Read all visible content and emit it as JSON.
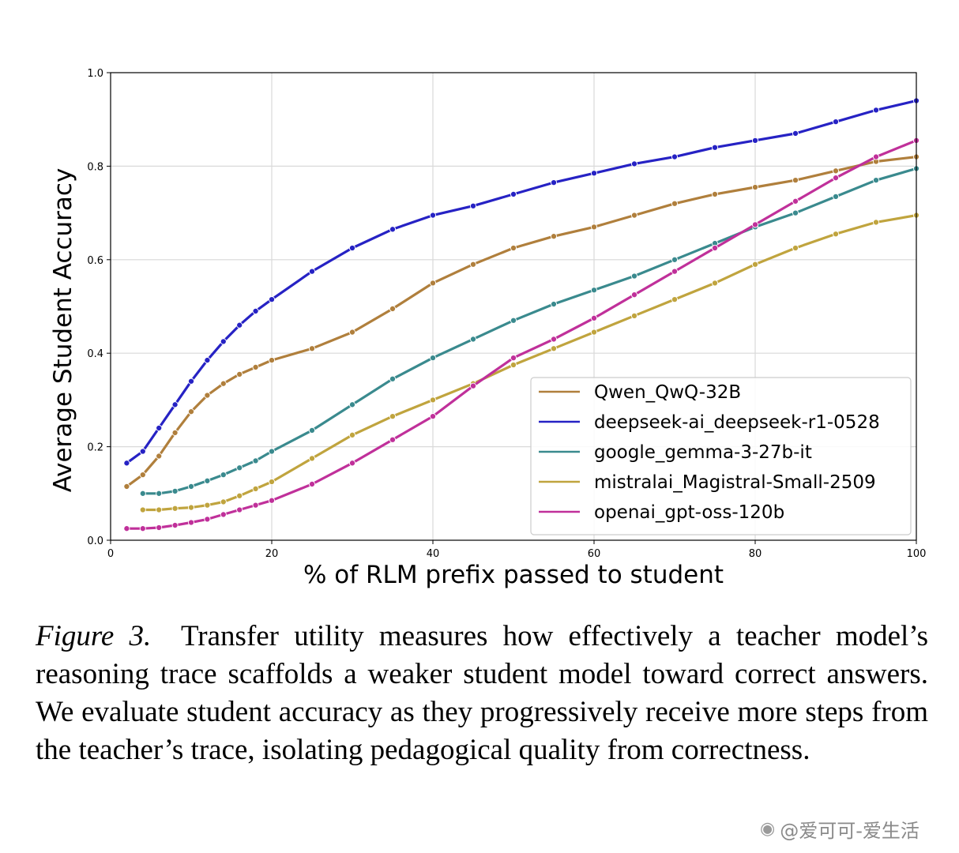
{
  "chart_data": {
    "type": "line",
    "title": "",
    "xlabel": "% of RLM prefix passed to student",
    "ylabel": "Average Student Accuracy",
    "xlim": [
      0,
      100
    ],
    "ylim": [
      0.0,
      1.0
    ],
    "xticks": [
      0,
      20,
      40,
      60,
      80,
      100
    ],
    "yticks": [
      0.0,
      0.2,
      0.4,
      0.6,
      0.8,
      1.0
    ],
    "xtick_labels": [
      "0",
      "20",
      "40",
      "60",
      "80",
      "100"
    ],
    "ytick_labels": [
      "0.0",
      "0.2",
      "0.4",
      "0.6",
      "0.8",
      "1.0"
    ],
    "grid": true,
    "legend_position": "lower-right",
    "series": [
      {
        "name": "Qwen_QwQ-32B",
        "color": "#b07f3c",
        "x": [
          2,
          4,
          6,
          8,
          10,
          12,
          14,
          16,
          18,
          20,
          25,
          30,
          35,
          40,
          45,
          50,
          55,
          60,
          65,
          70,
          75,
          80,
          85,
          90,
          95,
          100
        ],
        "y": [
          0.115,
          0.14,
          0.18,
          0.23,
          0.275,
          0.31,
          0.335,
          0.355,
          0.37,
          0.385,
          0.41,
          0.445,
          0.495,
          0.55,
          0.59,
          0.625,
          0.65,
          0.67,
          0.695,
          0.72,
          0.74,
          0.755,
          0.77,
          0.79,
          0.81,
          0.82
        ]
      },
      {
        "name": "deepseek-ai_deepseek-r1-0528",
        "color": "#2622c4",
        "x": [
          2,
          4,
          6,
          8,
          10,
          12,
          14,
          16,
          18,
          20,
          25,
          30,
          35,
          40,
          45,
          50,
          55,
          60,
          65,
          70,
          75,
          80,
          85,
          90,
          95,
          100
        ],
        "y": [
          0.165,
          0.19,
          0.24,
          0.29,
          0.34,
          0.385,
          0.425,
          0.46,
          0.49,
          0.515,
          0.575,
          0.625,
          0.665,
          0.695,
          0.715,
          0.74,
          0.765,
          0.785,
          0.805,
          0.82,
          0.84,
          0.855,
          0.87,
          0.895,
          0.92,
          0.94
        ]
      },
      {
        "name": "google_gemma-3-27b-it",
        "color": "#3a8a8e",
        "x": [
          4,
          6,
          8,
          10,
          12,
          14,
          16,
          18,
          20,
          25,
          30,
          35,
          40,
          45,
          50,
          55,
          60,
          65,
          70,
          75,
          80,
          85,
          90,
          95,
          100
        ],
        "y": [
          0.1,
          0.1,
          0.105,
          0.115,
          0.127,
          0.14,
          0.155,
          0.17,
          0.19,
          0.235,
          0.29,
          0.345,
          0.39,
          0.43,
          0.47,
          0.505,
          0.535,
          0.565,
          0.6,
          0.635,
          0.67,
          0.7,
          0.735,
          0.77,
          0.795
        ]
      },
      {
        "name": "mistralai_Magistral-Small-2509",
        "color": "#c0a43e",
        "x": [
          4,
          6,
          8,
          10,
          12,
          14,
          16,
          18,
          20,
          25,
          30,
          35,
          40,
          45,
          50,
          55,
          60,
          65,
          70,
          75,
          80,
          85,
          90,
          95,
          100
        ],
        "y": [
          0.065,
          0.065,
          0.068,
          0.07,
          0.075,
          0.082,
          0.095,
          0.11,
          0.125,
          0.175,
          0.225,
          0.265,
          0.3,
          0.335,
          0.375,
          0.41,
          0.445,
          0.48,
          0.515,
          0.55,
          0.59,
          0.625,
          0.655,
          0.68,
          0.695
        ]
      },
      {
        "name": "openai_gpt-oss-120b",
        "color": "#c0309a",
        "x": [
          2,
          4,
          6,
          8,
          10,
          12,
          14,
          16,
          18,
          20,
          25,
          30,
          35,
          40,
          45,
          50,
          55,
          60,
          65,
          70,
          75,
          80,
          85,
          90,
          95,
          100
        ],
        "y": [
          0.025,
          0.025,
          0.027,
          0.032,
          0.038,
          0.045,
          0.055,
          0.065,
          0.075,
          0.085,
          0.12,
          0.165,
          0.215,
          0.265,
          0.33,
          0.39,
          0.43,
          0.475,
          0.525,
          0.575,
          0.625,
          0.675,
          0.725,
          0.775,
          0.82,
          0.855
        ]
      }
    ]
  },
  "caption": {
    "figure_label": "Figure 3.",
    "text": "Transfer utility measures how effectively a teacher model’s reasoning trace scaffolds a weaker student model toward correct answers. We evaluate student accuracy as they progressively receive more steps from the teacher’s trace, isolating pedagogical quality from correctness."
  },
  "watermark": {
    "text": "@爱可可-爱生活"
  }
}
